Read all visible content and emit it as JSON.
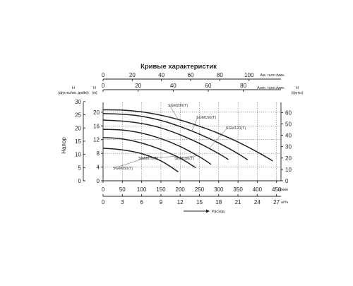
{
  "chart_data": {
    "type": "line",
    "title": "Кривые характеристик",
    "top_axis_us_gal": {
      "label": "Ам. галл./мин.",
      "ticks": [
        0,
        20,
        40,
        60,
        80,
        100
      ],
      "range": [
        0,
        121.9
      ]
    },
    "top_axis_imp_gal": {
      "label": "Англ. галл./мин.",
      "ticks": [
        0,
        20,
        40,
        60,
        80
      ],
      "range": [
        0,
        101.5
      ]
    },
    "left_axis_psi": {
      "label": "H (фунты/кв. дюйм)",
      "label_line1": "H",
      "label_line2": "(фунты/кв. дюйм)",
      "ticks": [
        0,
        5,
        10,
        15,
        20,
        25,
        30
      ],
      "range": [
        0,
        29.7
      ]
    },
    "left_axis_m": {
      "label": "H (м)",
      "label_line1": "H",
      "label_line2": "(м)",
      "ticks": [
        0,
        4,
        8,
        12,
        16,
        20
      ],
      "range": [
        0,
        21
      ]
    },
    "right_axis_ft": {
      "label": "H (футы)",
      "label_line1": "H",
      "label_line2": "(футы)",
      "ticks": [
        0,
        10,
        20,
        30,
        40,
        50,
        60
      ],
      "range": [
        0,
        68.9
      ]
    },
    "bottom_axis_lpm": {
      "label": "л/мин",
      "ticks": [
        0,
        50,
        100,
        150,
        200,
        250,
        300,
        350,
        400,
        450
      ],
      "range": [
        0,
        461.5
      ]
    },
    "bottom_axis_m3h": {
      "label": "м³/ч",
      "ticks": [
        0,
        3,
        6,
        9,
        12,
        15,
        18,
        21,
        24,
        27
      ],
      "range": [
        0,
        27.7
      ]
    },
    "ylabel": "Напор",
    "xlabel": "Расход",
    "series": [
      {
        "name": "SGM050(T)",
        "points": [
          [
            0,
            9.5
          ],
          [
            50,
            9.0
          ],
          [
            100,
            7.9
          ],
          [
            150,
            5.8
          ],
          [
            195,
            2.6
          ]
        ]
      },
      {
        "name": "SGM075(T)",
        "points": [
          [
            0,
            12.6
          ],
          [
            50,
            12.2
          ],
          [
            100,
            11.0
          ],
          [
            150,
            9.1
          ],
          [
            200,
            6.6
          ],
          [
            240,
            3.8
          ]
        ]
      },
      {
        "name": "SGM100(T)",
        "points": [
          [
            0,
            15.0
          ],
          [
            50,
            14.8
          ],
          [
            100,
            13.9
          ],
          [
            150,
            12.3
          ],
          [
            200,
            10.0
          ],
          [
            250,
            7.0
          ],
          [
            280,
            4.8
          ]
        ]
      },
      {
        "name": "SGM120(T)",
        "points": [
          [
            0,
            17.7
          ],
          [
            50,
            17.4
          ],
          [
            100,
            16.7
          ],
          [
            150,
            15.4
          ],
          [
            200,
            13.4
          ],
          [
            250,
            10.9
          ],
          [
            300,
            7.9
          ],
          [
            325,
            6.2
          ]
        ]
      },
      {
        "name": "SGM150(T)",
        "points": [
          [
            0,
            19.6
          ],
          [
            50,
            19.4
          ],
          [
            100,
            18.8
          ],
          [
            150,
            17.6
          ],
          [
            200,
            15.8
          ],
          [
            250,
            13.6
          ],
          [
            300,
            11.0
          ],
          [
            350,
            7.9
          ],
          [
            375,
            6.1
          ]
        ]
      },
      {
        "name": "SGM200(T)",
        "points": [
          [
            0,
            20.7
          ],
          [
            50,
            20.6
          ],
          [
            100,
            20.1
          ],
          [
            150,
            19.1
          ],
          [
            200,
            17.7
          ],
          [
            250,
            15.9
          ],
          [
            300,
            13.8
          ],
          [
            350,
            11.3
          ],
          [
            400,
            8.4
          ],
          [
            440,
            5.8
          ]
        ]
      }
    ]
  }
}
